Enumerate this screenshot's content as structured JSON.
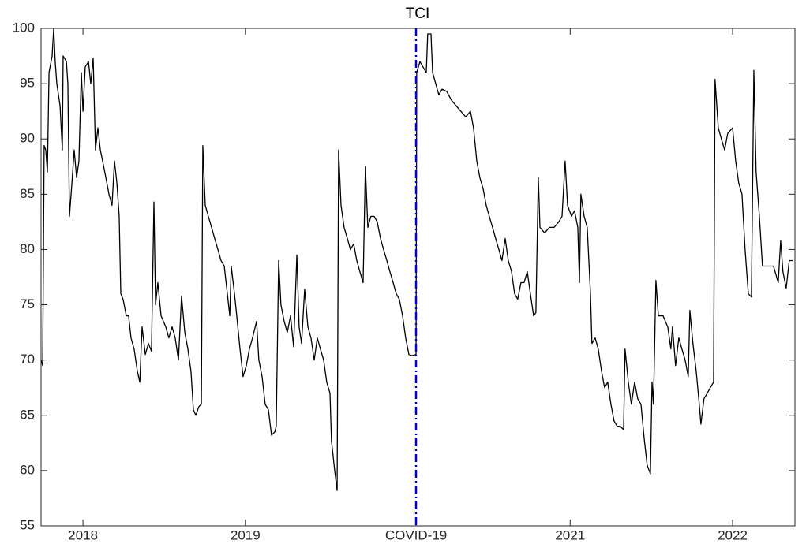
{
  "chart_data": {
    "type": "line",
    "title": "TCI",
    "x": [
      2017.742,
      2017.752,
      2017.761,
      2017.771,
      2017.781,
      2017.791,
      2017.81,
      2017.82,
      2017.829,
      2017.839,
      2017.849,
      2017.859,
      2017.873,
      2017.878,
      2017.898,
      2017.907,
      2017.917,
      2017.932,
      2017.946,
      2017.961,
      2017.975,
      2017.99,
      2018.0,
      2018.014,
      2018.034,
      2018.048,
      2018.063,
      2018.077,
      2018.092,
      2018.107,
      2018.121,
      2018.141,
      2018.16,
      2018.179,
      2018.194,
      2018.209,
      2018.223,
      2018.233,
      2018.247,
      2018.267,
      2018.281,
      2018.296,
      2018.315,
      2018.335,
      2018.35,
      2018.364,
      2018.384,
      2018.403,
      2018.422,
      2018.437,
      2018.447,
      2018.461,
      2018.481,
      2018.51,
      2018.529,
      2018.549,
      2018.568,
      2018.588,
      2018.607,
      2018.627,
      2018.646,
      2018.665,
      2018.68,
      2018.695,
      2018.714,
      2018.729,
      2018.738,
      2018.753,
      2018.772,
      2018.792,
      2018.811,
      2018.831,
      2018.85,
      2018.87,
      2018.889,
      2018.904,
      2018.913,
      2018.933,
      2018.947,
      2018.967,
      2018.986,
      2019.006,
      2019.025,
      2019.044,
      2019.069,
      2019.083,
      2019.103,
      2019.122,
      2019.142,
      2019.161,
      2019.181,
      2019.19,
      2019.205,
      2019.219,
      2019.239,
      2019.258,
      2019.278,
      2019.297,
      2019.317,
      2019.331,
      2019.346,
      2019.365,
      2019.385,
      2019.404,
      2019.424,
      2019.443,
      2019.462,
      2019.482,
      2019.501,
      2019.521,
      2019.53,
      2019.55,
      2019.565,
      2019.574,
      2019.589,
      2019.608,
      2019.628,
      2019.647,
      2019.667,
      2019.686,
      2019.705,
      2019.725,
      2019.739,
      2019.754,
      2019.773,
      2019.793,
      2019.812,
      2019.832,
      2019.851,
      2019.871,
      2019.89,
      2019.91,
      2019.929,
      2019.948,
      2019.968,
      2019.987,
      2020.007,
      2020.026,
      2020.051,
      2020.055,
      2020.075,
      2020.094,
      2020.114,
      2020.123,
      2020.143,
      2020.153,
      2020.172,
      2020.191,
      2020.211,
      2020.24,
      2020.269,
      2020.298,
      2020.327,
      2020.357,
      2020.386,
      2020.405,
      2020.425,
      2020.444,
      2020.464,
      2020.483,
      2020.502,
      2020.522,
      2020.541,
      2020.561,
      2020.58,
      2020.6,
      2020.619,
      2020.639,
      2020.658,
      2020.677,
      2020.697,
      2020.716,
      2020.736,
      2020.755,
      2020.775,
      2020.789,
      2020.804,
      2020.814,
      2020.843,
      2020.872,
      2020.901,
      2020.93,
      2020.95,
      2020.969,
      2020.984,
      2021.008,
      2021.027,
      2021.047,
      2021.057,
      2021.066,
      2021.086,
      2021.105,
      2021.125,
      2021.134,
      2021.154,
      2021.173,
      2021.193,
      2021.212,
      2021.231,
      2021.251,
      2021.27,
      2021.29,
      2021.309,
      2021.329,
      2021.338,
      2021.358,
      2021.377,
      2021.397,
      2021.416,
      2021.436,
      2021.455,
      2021.474,
      2021.494,
      2021.504,
      2021.513,
      2021.528,
      2021.543,
      2021.572,
      2021.601,
      2021.62,
      2021.63,
      2021.649,
      2021.669,
      2021.688,
      2021.708,
      2021.727,
      2021.737,
      2021.756,
      2021.776,
      2021.795,
      2021.805,
      2021.824,
      2021.844,
      2021.863,
      2021.883,
      2021.892,
      2021.912,
      2021.931,
      2021.951,
      2021.97,
      2022.0,
      2022.019,
      2022.038,
      2022.058,
      2022.077,
      2022.097,
      2022.116,
      2022.131,
      2022.145,
      2022.165,
      2022.184,
      2022.203,
      2022.223,
      2022.252,
      2022.281,
      2022.296,
      2022.31,
      2022.33,
      2022.349,
      2022.369
    ],
    "series": [
      {
        "name": "TCI",
        "color": "#000000",
        "values": [
          70,
          69.5,
          89.4,
          89,
          87,
          96,
          97.5,
          100,
          97,
          95,
          94,
          93,
          89,
          97.5,
          97,
          95,
          83,
          86,
          89,
          86.5,
          88,
          96,
          92.5,
          96.5,
          97,
          95,
          97.3,
          89,
          91,
          89,
          88,
          86.5,
          85,
          84,
          88,
          86,
          83,
          76,
          75.5,
          74,
          74,
          72,
          71,
          69,
          68,
          73,
          70.5,
          71.5,
          70.8,
          84.3,
          75,
          77,
          74,
          73,
          72,
          73,
          72,
          70,
          75.8,
          72.5,
          71,
          69,
          65.5,
          65,
          65.8,
          66,
          89.4,
          84,
          83,
          82,
          81,
          80,
          79,
          78.5,
          76,
          74,
          78.5,
          76,
          74,
          71,
          68.5,
          69.5,
          71,
          72,
          73.5,
          70,
          68.5,
          66,
          65.5,
          63.2,
          63.5,
          64,
          79,
          75,
          73.5,
          72.5,
          74,
          71.2,
          79.5,
          73,
          71.5,
          76.4,
          73,
          72,
          70,
          72,
          71,
          70,
          68,
          67,
          62.7,
          60,
          58.2,
          89,
          84,
          82,
          81,
          80,
          80.5,
          79,
          78,
          77,
          87.5,
          82,
          83,
          83,
          82.5,
          81,
          80,
          79,
          78,
          77,
          76,
          75.5,
          74,
          72,
          70.5,
          70.4,
          70.5,
          96,
          97,
          96.5,
          96,
          99.5,
          99.5,
          96,
          95,
          94,
          94.5,
          94.3,
          93.5,
          93,
          92.5,
          92,
          92.5,
          91,
          88,
          86.5,
          85.5,
          84,
          83,
          82,
          81,
          80,
          79,
          81,
          79,
          78,
          76,
          75.5,
          77,
          77,
          78,
          76,
          74,
          74.3,
          86.5,
          82,
          81.5,
          82,
          82,
          82.5,
          83,
          88,
          84,
          83,
          83.5,
          82,
          77,
          85,
          83,
          82,
          76,
          71.5,
          72,
          71,
          69,
          67.5,
          68,
          66,
          64.5,
          64,
          64,
          63.7,
          71,
          68,
          66,
          68,
          66.5,
          66,
          63,
          60.5,
          59.7,
          68,
          66,
          77.2,
          74,
          74,
          73,
          71,
          73,
          69.5,
          72,
          71,
          70,
          68.5,
          74.5,
          71.5,
          69,
          66,
          64.2,
          66.5,
          67,
          67.5,
          68,
          95.4,
          91,
          90,
          89,
          90.5,
          91,
          88,
          86,
          85,
          80,
          76,
          75.7,
          96.2,
          87,
          83,
          78.5,
          78.5,
          78.5,
          78.5,
          77,
          80.8,
          78,
          76.5,
          79,
          79
        ]
      }
    ],
    "xlim": [
      2017.742,
      2022.384
    ],
    "xticks": [
      2018,
      2019,
      {
        "value": 2020.051,
        "label": "COVID-19"
      },
      2021,
      2022
    ],
    "ylim": [
      55,
      100
    ],
    "yticks": [
      55,
      60,
      65,
      70,
      75,
      80,
      85,
      90,
      95,
      100
    ],
    "event_line": {
      "x": 2020.051,
      "color": "#0000cc"
    },
    "grid": false
  }
}
